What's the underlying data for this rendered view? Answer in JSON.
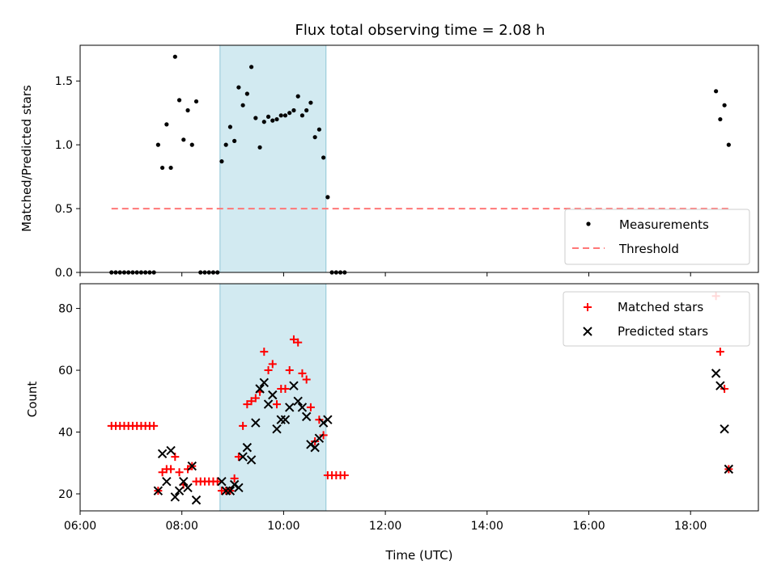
{
  "chart_data": [
    {
      "type": "scatter",
      "title": "Flux total observing time = 2.08 h",
      "xlabel": "",
      "ylabel": "Matched/Predicted stars",
      "xlim": [
        "06:00",
        "19:20"
      ],
      "ylim": [
        0,
        1.78
      ],
      "yticks": [
        "0.0",
        "0.5",
        "1.0",
        "1.5"
      ],
      "highlight_span": {
        "x": [
          "08:45",
          "10:50"
        ],
        "color": "#add8e6"
      },
      "legend": {
        "position": "lower-right",
        "entries": [
          "Measurements",
          "Threshold"
        ]
      },
      "series": [
        {
          "name": "Measurements",
          "marker": "dot",
          "color": "#000000",
          "x": [
            "06:37",
            "06:42",
            "06:47",
            "06:52",
            "06:57",
            "07:02",
            "07:07",
            "07:12",
            "07:17",
            "07:22",
            "07:27",
            "07:32",
            "07:37",
            "07:42",
            "07:47",
            "07:52",
            "07:57",
            "08:02",
            "08:07",
            "08:12",
            "08:17",
            "08:22",
            "08:27",
            "08:32",
            "08:37",
            "08:42",
            "08:47",
            "08:52",
            "08:57",
            "09:02",
            "09:07",
            "09:12",
            "09:17",
            "09:22",
            "09:27",
            "09:32",
            "09:37",
            "09:42",
            "09:47",
            "09:52",
            "09:57",
            "10:02",
            "10:07",
            "10:12",
            "10:17",
            "10:22",
            "10:27",
            "10:32",
            "10:37",
            "10:42",
            "10:47",
            "10:52",
            "10:57",
            "11:02",
            "11:07",
            "11:12",
            "18:30",
            "18:35",
            "18:40",
            "18:45"
          ],
          "y": [
            0,
            0,
            0,
            0,
            0,
            0,
            0,
            0,
            0,
            0,
            0,
            1.0,
            0.82,
            1.16,
            0.82,
            1.69,
            1.35,
            1.04,
            1.27,
            1.0,
            1.34,
            0,
            0,
            0,
            0,
            0,
            0.87,
            1.0,
            1.14,
            1.03,
            1.45,
            1.31,
            1.4,
            1.61,
            1.21,
            0.98,
            1.18,
            1.22,
            1.19,
            1.2,
            1.23,
            1.23,
            1.25,
            1.27,
            1.38,
            1.23,
            1.27,
            1.33,
            1.06,
            1.12,
            0.9,
            0.59,
            0,
            0,
            0,
            0,
            1.42,
            1.2,
            1.31,
            1.0
          ]
        },
        {
          "name": "Threshold",
          "type": "line",
          "style": "dashed",
          "color": "#ff7777",
          "x": [
            "06:37",
            "18:45"
          ],
          "y": [
            0.5,
            0.5
          ]
        }
      ]
    },
    {
      "type": "scatter",
      "title": "",
      "xlabel": "Time (UTC)",
      "ylabel": "Count",
      "xlim": [
        "06:00",
        "19:20"
      ],
      "ylim": [
        14.5,
        88
      ],
      "yticks": [
        20,
        40,
        60,
        80
      ],
      "xticks": [
        "06:00",
        "08:00",
        "10:00",
        "12:00",
        "14:00",
        "16:00",
        "18:00"
      ],
      "highlight_span": {
        "x": [
          "08:45",
          "10:50"
        ],
        "color": "#add8e6"
      },
      "legend": {
        "position": "top-right",
        "entries": [
          "Matched stars",
          "Predicted stars"
        ]
      },
      "series": [
        {
          "name": "Matched stars",
          "marker": "plus",
          "color": "#ff0000",
          "x": [
            "06:37",
            "06:42",
            "06:47",
            "06:52",
            "06:57",
            "07:02",
            "07:07",
            "07:12",
            "07:17",
            "07:22",
            "07:27",
            "07:32",
            "07:37",
            "07:42",
            "07:47",
            "07:52",
            "07:57",
            "08:02",
            "08:07",
            "08:12",
            "08:17",
            "08:22",
            "08:27",
            "08:32",
            "08:37",
            "08:42",
            "08:47",
            "08:52",
            "08:57",
            "09:02",
            "09:07",
            "09:12",
            "09:17",
            "09:22",
            "09:27",
            "09:32",
            "09:37",
            "09:42",
            "09:47",
            "09:52",
            "09:57",
            "10:02",
            "10:07",
            "10:12",
            "10:17",
            "10:22",
            "10:27",
            "10:32",
            "10:37",
            "10:42",
            "10:47",
            "10:52",
            "10:57",
            "11:02",
            "11:07",
            "11:12",
            "18:30",
            "18:35",
            "18:40",
            "18:45"
          ],
          "y": [
            42,
            42,
            42,
            42,
            42,
            42,
            42,
            42,
            42,
            42,
            42,
            21,
            27,
            28,
            28,
            32,
            27,
            23,
            28,
            29,
            24,
            24,
            24,
            24,
            24,
            24,
            21,
            21,
            21,
            25,
            32,
            42,
            49,
            50,
            51,
            53,
            66,
            60,
            62,
            49,
            54,
            54,
            60,
            70,
            69,
            59,
            57,
            48,
            37,
            44,
            39,
            26,
            26,
            26,
            26,
            26,
            84,
            66,
            54,
            28
          ]
        },
        {
          "name": "Predicted stars",
          "marker": "x",
          "color": "#000000",
          "x": [
            "07:32",
            "07:37",
            "07:42",
            "07:47",
            "07:52",
            "07:57",
            "08:02",
            "08:07",
            "08:12",
            "08:17",
            "08:47",
            "08:52",
            "08:57",
            "09:02",
            "09:07",
            "09:12",
            "09:17",
            "09:22",
            "09:27",
            "09:32",
            "09:37",
            "09:42",
            "09:47",
            "09:52",
            "09:57",
            "10:02",
            "10:07",
            "10:12",
            "10:17",
            "10:22",
            "10:27",
            "10:32",
            "10:37",
            "10:42",
            "10:47",
            "10:52",
            "18:30",
            "18:35",
            "18:40",
            "18:45"
          ],
          "y": [
            21,
            33,
            24,
            34,
            19,
            21,
            24,
            22,
            29,
            18,
            24,
            21,
            21,
            23,
            22,
            32,
            35,
            31,
            43,
            54,
            56,
            49,
            52,
            41,
            44,
            44,
            48,
            55,
            50,
            48,
            45,
            36,
            35,
            38,
            43,
            44,
            59,
            55,
            41,
            28
          ]
        }
      ]
    }
  ]
}
